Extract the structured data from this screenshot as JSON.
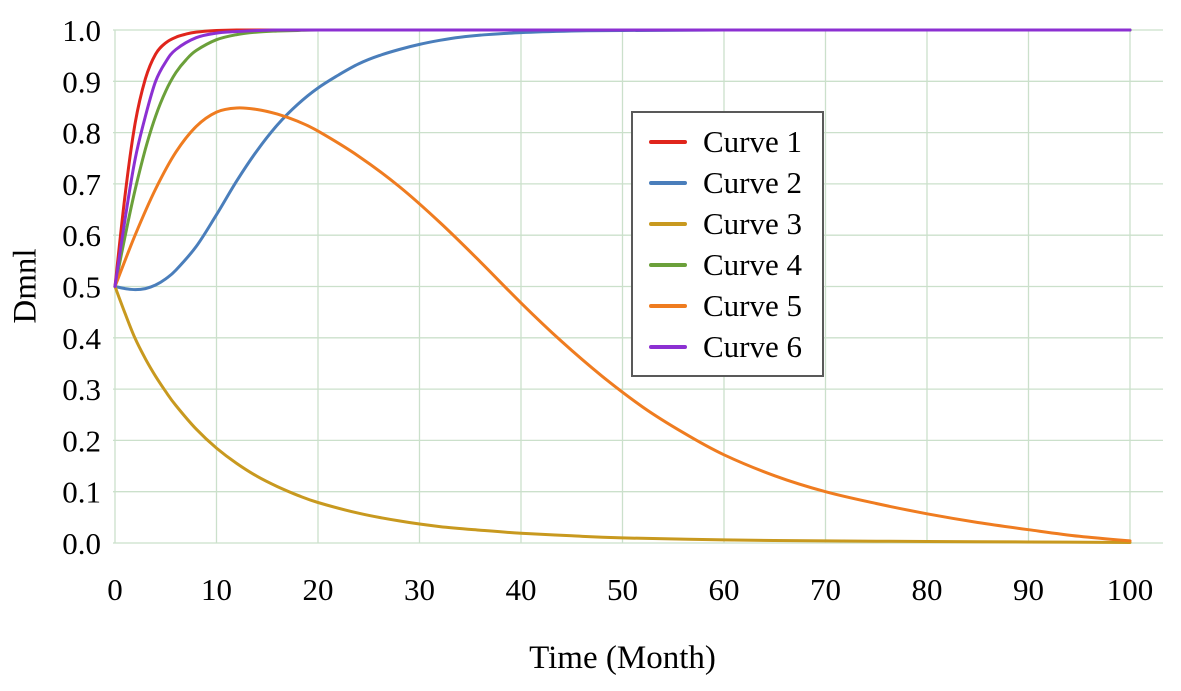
{
  "chart_data": {
    "type": "line",
    "title": "",
    "xlabel": "Time (Month)",
    "ylabel": "Dmnl",
    "xlim": [
      0,
      100
    ],
    "ylim": [
      0.0,
      1.0
    ],
    "grid": true,
    "grid_color": "#cbe0cb",
    "text_color": "#000000",
    "legend_position": "upper-middle-right",
    "xticks": [
      0,
      10,
      20,
      30,
      40,
      50,
      60,
      70,
      80,
      90,
      100
    ],
    "xtick_labels": [
      "0",
      "10",
      "20",
      "30",
      "40",
      "50",
      "60",
      "70",
      "80",
      "90",
      "100"
    ],
    "yticks": [
      0.0,
      0.1,
      0.2,
      0.3,
      0.4,
      0.5,
      0.6,
      0.7,
      0.8,
      0.9,
      1.0
    ],
    "ytick_labels": [
      "0.0",
      "0.1",
      "0.2",
      "0.3",
      "0.4",
      "0.5",
      "0.6",
      "0.7",
      "0.8",
      "0.9",
      "1.0"
    ],
    "series": [
      {
        "name": "Curve 1",
        "color": "#e0251c",
        "points": [
          [
            0,
            0.5
          ],
          [
            1,
            0.68
          ],
          [
            2,
            0.82
          ],
          [
            3,
            0.905
          ],
          [
            4,
            0.953
          ],
          [
            5,
            0.975
          ],
          [
            6,
            0.986
          ],
          [
            7,
            0.992
          ],
          [
            8,
            0.996
          ],
          [
            10,
            0.999
          ],
          [
            12,
            1.0
          ],
          [
            16,
            1.0
          ],
          [
            25,
            1.0
          ],
          [
            40,
            1.0
          ],
          [
            60,
            1.0
          ],
          [
            80,
            1.0
          ],
          [
            100,
            1.0
          ]
        ]
      },
      {
        "name": "Curve 2",
        "color": "#4a7ebb",
        "points": [
          [
            0,
            0.5
          ],
          [
            1,
            0.496
          ],
          [
            2,
            0.494
          ],
          [
            3,
            0.496
          ],
          [
            4,
            0.503
          ],
          [
            5,
            0.515
          ],
          [
            6,
            0.532
          ],
          [
            8,
            0.578
          ],
          [
            10,
            0.64
          ],
          [
            12,
            0.706
          ],
          [
            14,
            0.765
          ],
          [
            16,
            0.815
          ],
          [
            18,
            0.855
          ],
          [
            20,
            0.887
          ],
          [
            22,
            0.912
          ],
          [
            24,
            0.934
          ],
          [
            26,
            0.95
          ],
          [
            28,
            0.962
          ],
          [
            30,
            0.972
          ],
          [
            32,
            0.98
          ],
          [
            34,
            0.986
          ],
          [
            36,
            0.99
          ],
          [
            40,
            0.995
          ],
          [
            45,
            0.998
          ],
          [
            50,
            0.999
          ],
          [
            60,
            1.0
          ],
          [
            80,
            1.0
          ],
          [
            100,
            1.0
          ]
        ]
      },
      {
        "name": "Curve 3",
        "color": "#c8991f",
        "points": [
          [
            0,
            0.5
          ],
          [
            1,
            0.447
          ],
          [
            2,
            0.398
          ],
          [
            3,
            0.359
          ],
          [
            4,
            0.325
          ],
          [
            5,
            0.295
          ],
          [
            6,
            0.268
          ],
          [
            8,
            0.222
          ],
          [
            10,
            0.185
          ],
          [
            12,
            0.155
          ],
          [
            14,
            0.13
          ],
          [
            16,
            0.11
          ],
          [
            18,
            0.093
          ],
          [
            20,
            0.079
          ],
          [
            24,
            0.058
          ],
          [
            28,
            0.043
          ],
          [
            32,
            0.032
          ],
          [
            36,
            0.025
          ],
          [
            40,
            0.019
          ],
          [
            45,
            0.014
          ],
          [
            50,
            0.01
          ],
          [
            60,
            0.006
          ],
          [
            70,
            0.004
          ],
          [
            80,
            0.003
          ],
          [
            90,
            0.002
          ],
          [
            100,
            0.001
          ]
        ]
      },
      {
        "name": "Curve 4",
        "color": "#6ba03a",
        "points": [
          [
            0,
            0.5
          ],
          [
            1,
            0.599
          ],
          [
            2,
            0.69
          ],
          [
            3,
            0.768
          ],
          [
            4,
            0.832
          ],
          [
            5,
            0.881
          ],
          [
            6,
            0.917
          ],
          [
            7,
            0.942
          ],
          [
            8,
            0.96
          ],
          [
            10,
            0.981
          ],
          [
            12,
            0.991
          ],
          [
            14,
            0.996
          ],
          [
            16,
            0.998
          ],
          [
            18,
            0.999
          ],
          [
            20,
            1.0
          ],
          [
            30,
            1.0
          ],
          [
            40,
            1.0
          ],
          [
            60,
            1.0
          ],
          [
            80,
            1.0
          ],
          [
            100,
            1.0
          ]
        ]
      },
      {
        "name": "Curve 5",
        "color": "#ef7c20",
        "points": [
          [
            0,
            0.5
          ],
          [
            2,
            0.601
          ],
          [
            4,
            0.69
          ],
          [
            6,
            0.762
          ],
          [
            8,
            0.812
          ],
          [
            10,
            0.84
          ],
          [
            12,
            0.848
          ],
          [
            14,
            0.845
          ],
          [
            16,
            0.836
          ],
          [
            18,
            0.822
          ],
          [
            20,
            0.803
          ],
          [
            24,
            0.754
          ],
          [
            28,
            0.695
          ],
          [
            32,
            0.625
          ],
          [
            36,
            0.548
          ],
          [
            40,
            0.468
          ],
          [
            44,
            0.393
          ],
          [
            48,
            0.325
          ],
          [
            52,
            0.265
          ],
          [
            56,
            0.215
          ],
          [
            60,
            0.172
          ],
          [
            65,
            0.131
          ],
          [
            70,
            0.1
          ],
          [
            75,
            0.077
          ],
          [
            80,
            0.057
          ],
          [
            85,
            0.04
          ],
          [
            90,
            0.026
          ],
          [
            95,
            0.013
          ],
          [
            100,
            0.004
          ]
        ]
      },
      {
        "name": "Curve 6",
        "color": "#8c30d2",
        "points": [
          [
            0,
            0.5
          ],
          [
            1,
            0.633
          ],
          [
            2,
            0.75
          ],
          [
            3,
            0.832
          ],
          [
            4,
            0.9
          ],
          [
            5,
            0.938
          ],
          [
            6,
            0.962
          ],
          [
            8,
            0.985
          ],
          [
            10,
            0.994
          ],
          [
            12,
            0.997
          ],
          [
            14,
            0.999
          ],
          [
            16,
            1.0
          ],
          [
            20,
            1.0
          ],
          [
            30,
            1.0
          ],
          [
            50,
            1.0
          ],
          [
            75,
            1.0
          ],
          [
            100,
            1.0
          ]
        ]
      }
    ]
  }
}
